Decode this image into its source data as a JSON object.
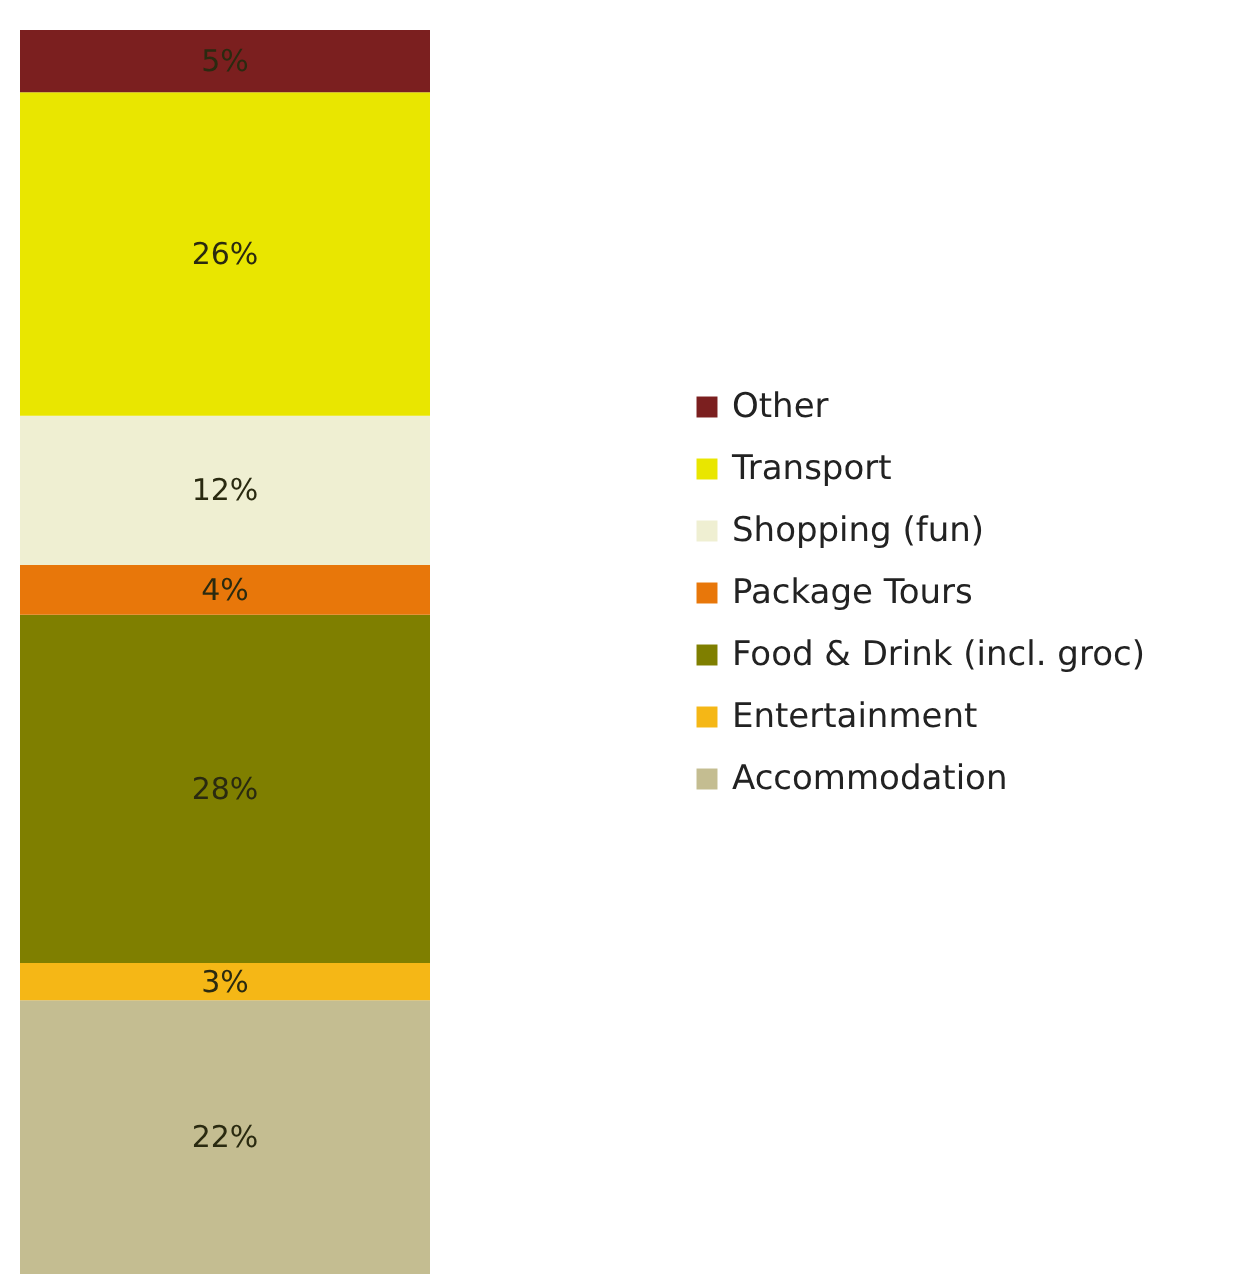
{
  "chart_data": {
    "type": "bar",
    "stacked": true,
    "categories": [
      null
    ],
    "series": [
      {
        "name": "Accommodation",
        "color": "#c4bd91",
        "values": [
          22
        ],
        "value_labels": [
          "22%"
        ]
      },
      {
        "name": "Entertainment",
        "color": "#f5b716",
        "values": [
          3
        ],
        "value_labels": [
          "3%"
        ]
      },
      {
        "name": "Food & Drink (incl. groc)",
        "color": "#7f7f00",
        "values": [
          28
        ],
        "value_labels": [
          "28%"
        ]
      },
      {
        "name": "Package Tours",
        "color": "#e8770a",
        "values": [
          4
        ],
        "value_labels": [
          "4%"
        ]
      },
      {
        "name": "Shopping (fun)",
        "color": "#efefd2",
        "values": [
          12
        ],
        "value_labels": [
          "12%"
        ]
      },
      {
        "name": "Transport",
        "color": "#e9e600",
        "values": [
          26
        ],
        "value_labels": [
          "26%"
        ]
      },
      {
        "name": "Other",
        "color": "#7b1f1f",
        "values": [
          5
        ],
        "value_labels": [
          "5%"
        ]
      }
    ],
    "legend": "right",
    "tick_labels": false
  }
}
